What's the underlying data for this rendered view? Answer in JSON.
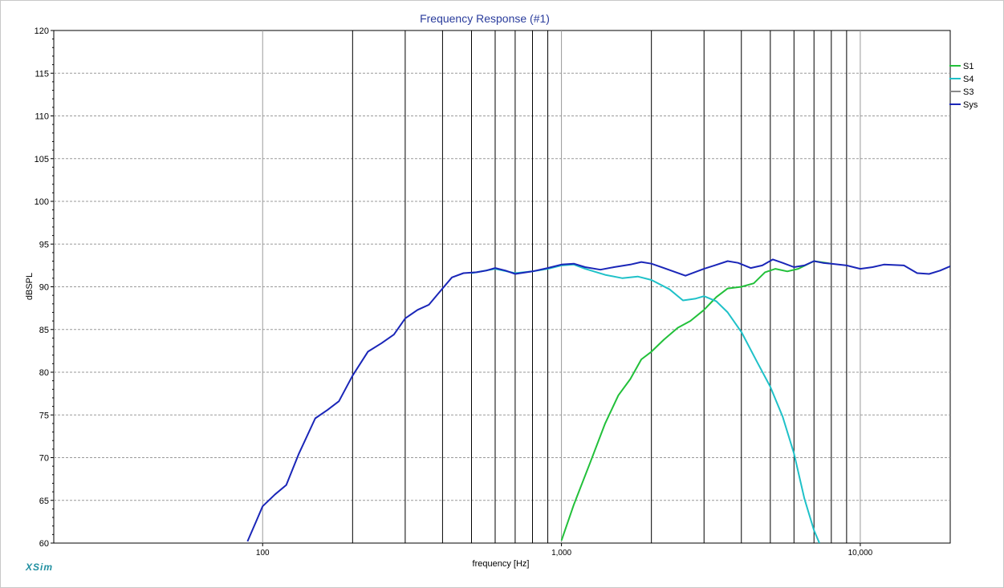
{
  "app": {
    "brand": "XSim"
  },
  "chart_data": {
    "type": "line",
    "title": "Frequency Response (#1)",
    "xlabel": "frequency [Hz]",
    "ylabel": "dBSPL",
    "xscale": "log",
    "xlim": [
      20,
      20000
    ],
    "ylim": [
      60,
      120
    ],
    "yticks": [
      60,
      65,
      70,
      75,
      80,
      85,
      90,
      95,
      100,
      105,
      110,
      115,
      120
    ],
    "xtick_labels": [
      {
        "x": 100,
        "label": "100"
      },
      {
        "x": 1000,
        "label": "1,000"
      },
      {
        "x": 10000,
        "label": "10,000"
      }
    ],
    "x_gridlines": [
      100,
      200,
      300,
      400,
      500,
      600,
      700,
      800,
      900,
      1000,
      2000,
      3000,
      4000,
      5000,
      6000,
      7000,
      8000,
      9000,
      10000
    ],
    "grid": true,
    "legend_position": "top-right",
    "series": [
      {
        "name": "S1",
        "color": "#22c03a",
        "points": [
          [
            1000,
            60.3
          ],
          [
            1100,
            64.5
          ],
          [
            1250,
            69.5
          ],
          [
            1400,
            74.0
          ],
          [
            1550,
            77.3
          ],
          [
            1700,
            79.2
          ],
          [
            1850,
            81.5
          ],
          [
            2000,
            82.4
          ],
          [
            2200,
            83.8
          ],
          [
            2450,
            85.2
          ],
          [
            2700,
            86.0
          ],
          [
            3000,
            87.3
          ],
          [
            3300,
            88.8
          ],
          [
            3600,
            89.8
          ],
          [
            4000,
            90.0
          ],
          [
            4400,
            90.4
          ],
          [
            4800,
            91.7
          ],
          [
            5200,
            92.1
          ],
          [
            5700,
            91.8
          ],
          [
            6200,
            92.1
          ],
          [
            7000,
            93.0
          ],
          [
            7700,
            92.8
          ],
          [
            8000,
            92.7
          ]
        ]
      },
      {
        "name": "S4",
        "color": "#1fc1c8",
        "points": [
          [
            500,
            91.6
          ],
          [
            600,
            92.1
          ],
          [
            700,
            91.6
          ],
          [
            800,
            91.8
          ],
          [
            900,
            92.1
          ],
          [
            1000,
            92.5
          ],
          [
            1100,
            92.6
          ],
          [
            1200,
            92.1
          ],
          [
            1400,
            91.4
          ],
          [
            1600,
            91.0
          ],
          [
            1800,
            91.2
          ],
          [
            2000,
            90.8
          ],
          [
            2300,
            89.7
          ],
          [
            2550,
            88.4
          ],
          [
            2800,
            88.6
          ],
          [
            3000,
            88.9
          ],
          [
            3300,
            88.3
          ],
          [
            3600,
            87.0
          ],
          [
            4000,
            84.7
          ],
          [
            4500,
            81.3
          ],
          [
            5000,
            78.3
          ],
          [
            5500,
            74.8
          ],
          [
            6000,
            70.5
          ],
          [
            6500,
            65.2
          ],
          [
            7000,
            61.5
          ],
          [
            7300,
            60.0
          ]
        ]
      },
      {
        "name": "S3",
        "color": "#8a8a8a",
        "points": []
      },
      {
        "name": "Sys",
        "color": "#1a26b8",
        "points": [
          [
            89,
            60.2
          ],
          [
            95,
            62.5
          ],
          [
            100,
            64.3
          ],
          [
            110,
            65.7
          ],
          [
            120,
            66.8
          ],
          [
            132,
            70.4
          ],
          [
            150,
            74.6
          ],
          [
            165,
            75.6
          ],
          [
            180,
            76.6
          ],
          [
            200,
            79.6
          ],
          [
            225,
            82.4
          ],
          [
            250,
            83.4
          ],
          [
            275,
            84.4
          ],
          [
            300,
            86.3
          ],
          [
            330,
            87.3
          ],
          [
            360,
            87.9
          ],
          [
            400,
            89.8
          ],
          [
            430,
            91.1
          ],
          [
            470,
            91.6
          ],
          [
            520,
            91.7
          ],
          [
            560,
            91.9
          ],
          [
            600,
            92.2
          ],
          [
            650,
            91.9
          ],
          [
            700,
            91.5
          ],
          [
            800,
            91.8
          ],
          [
            900,
            92.2
          ],
          [
            1000,
            92.6
          ],
          [
            1100,
            92.7
          ],
          [
            1200,
            92.3
          ],
          [
            1350,
            92.0
          ],
          [
            1500,
            92.3
          ],
          [
            1700,
            92.6
          ],
          [
            1850,
            92.9
          ],
          [
            2000,
            92.7
          ],
          [
            2200,
            92.2
          ],
          [
            2600,
            91.3
          ],
          [
            3000,
            92.1
          ],
          [
            3250,
            92.5
          ],
          [
            3600,
            93.0
          ],
          [
            3900,
            92.8
          ],
          [
            4300,
            92.2
          ],
          [
            4700,
            92.5
          ],
          [
            5100,
            93.2
          ],
          [
            5500,
            92.8
          ],
          [
            6000,
            92.3
          ],
          [
            6500,
            92.5
          ],
          [
            7000,
            93.0
          ],
          [
            7500,
            92.8
          ],
          [
            8000,
            92.7
          ],
          [
            9000,
            92.5
          ],
          [
            10000,
            92.1
          ],
          [
            11000,
            92.3
          ],
          [
            12000,
            92.6
          ],
          [
            14000,
            92.5
          ],
          [
            15500,
            91.6
          ],
          [
            17000,
            91.5
          ],
          [
            18500,
            91.9
          ],
          [
            20000,
            92.4
          ]
        ]
      }
    ]
  }
}
